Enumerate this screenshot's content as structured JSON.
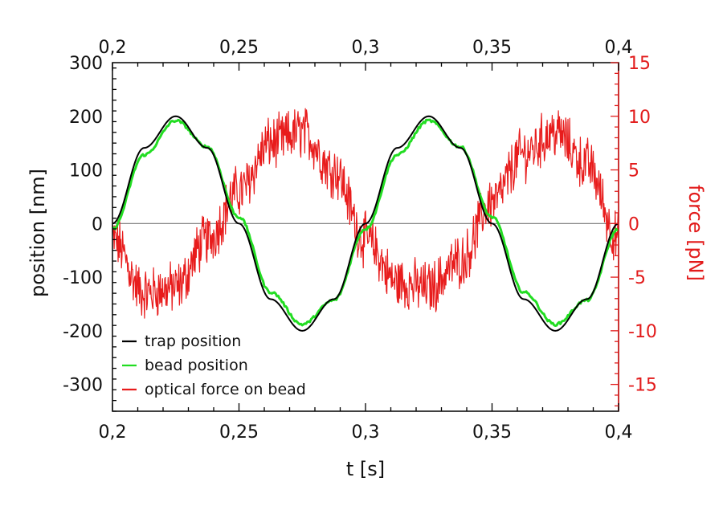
{
  "chart_data": {
    "type": "line",
    "xlabel": "t [s]",
    "ylabel": "position [nm]",
    "y2label": "force [pN]",
    "xlim": [
      0.2,
      0.4
    ],
    "ylim": [
      -350,
      300
    ],
    "y2lim": [
      -17.5,
      15
    ],
    "x_ticks": [
      "0,2",
      "0,25",
      "0,3",
      "0,35",
      "0,4"
    ],
    "x_tick_values": [
      0.2,
      0.25,
      0.3,
      0.35,
      0.4
    ],
    "y_ticks": [
      "300",
      "200",
      "100",
      "0",
      "-100",
      "-200",
      "-300"
    ],
    "y_tick_values": [
      300,
      200,
      100,
      0,
      -100,
      -200,
      -300
    ],
    "y2_ticks": [
      "15",
      "10",
      "5",
      "0",
      "-5",
      "-10",
      "-15"
    ],
    "y2_tick_values": [
      15,
      10,
      5,
      0,
      -5,
      -10,
      -15
    ],
    "grid": false,
    "zero_line": true,
    "legend_position": "bottom-left",
    "series": [
      {
        "name": "trap position",
        "axis": "left",
        "color": "#000000",
        "x": [
          0.2,
          0.2125,
          0.225,
          0.2375,
          0.25,
          0.2625,
          0.275,
          0.2875,
          0.3,
          0.3125,
          0.325,
          0.3375,
          0.35,
          0.3625,
          0.375,
          0.3875,
          0.4
        ],
        "y": [
          0,
          141,
          200,
          141,
          0,
          -141,
          -200,
          -141,
          0,
          141,
          200,
          141,
          0,
          -141,
          -200,
          -141,
          0
        ]
      },
      {
        "name": "bead position",
        "axis": "left",
        "color": "#22dd22",
        "x": [
          0.2,
          0.2125,
          0.225,
          0.2375,
          0.25,
          0.2625,
          0.275,
          0.2875,
          0.3,
          0.3125,
          0.325,
          0.3375,
          0.35,
          0.3625,
          0.375,
          0.3875,
          0.4
        ],
        "y": [
          -10,
          128,
          192,
          143,
          12,
          -128,
          -188,
          -143,
          -10,
          128,
          192,
          143,
          12,
          -128,
          -188,
          -143,
          -10
        ]
      },
      {
        "name": "optical force on bead",
        "axis": "right",
        "color": "#e81c1c",
        "x": [
          0.2,
          0.2125,
          0.225,
          0.2375,
          0.25,
          0.2625,
          0.275,
          0.2875,
          0.3,
          0.3125,
          0.325,
          0.3375,
          0.35,
          0.3625,
          0.375,
          0.3875,
          0.4
        ],
        "y": [
          -1.5,
          -6.5,
          -6.0,
          -1.5,
          3.0,
          7.5,
          8.5,
          5.0,
          -1.5,
          -5.5,
          -6.0,
          -3.5,
          2.0,
          6.5,
          8.5,
          5.5,
          -1.5
        ]
      }
    ]
  }
}
